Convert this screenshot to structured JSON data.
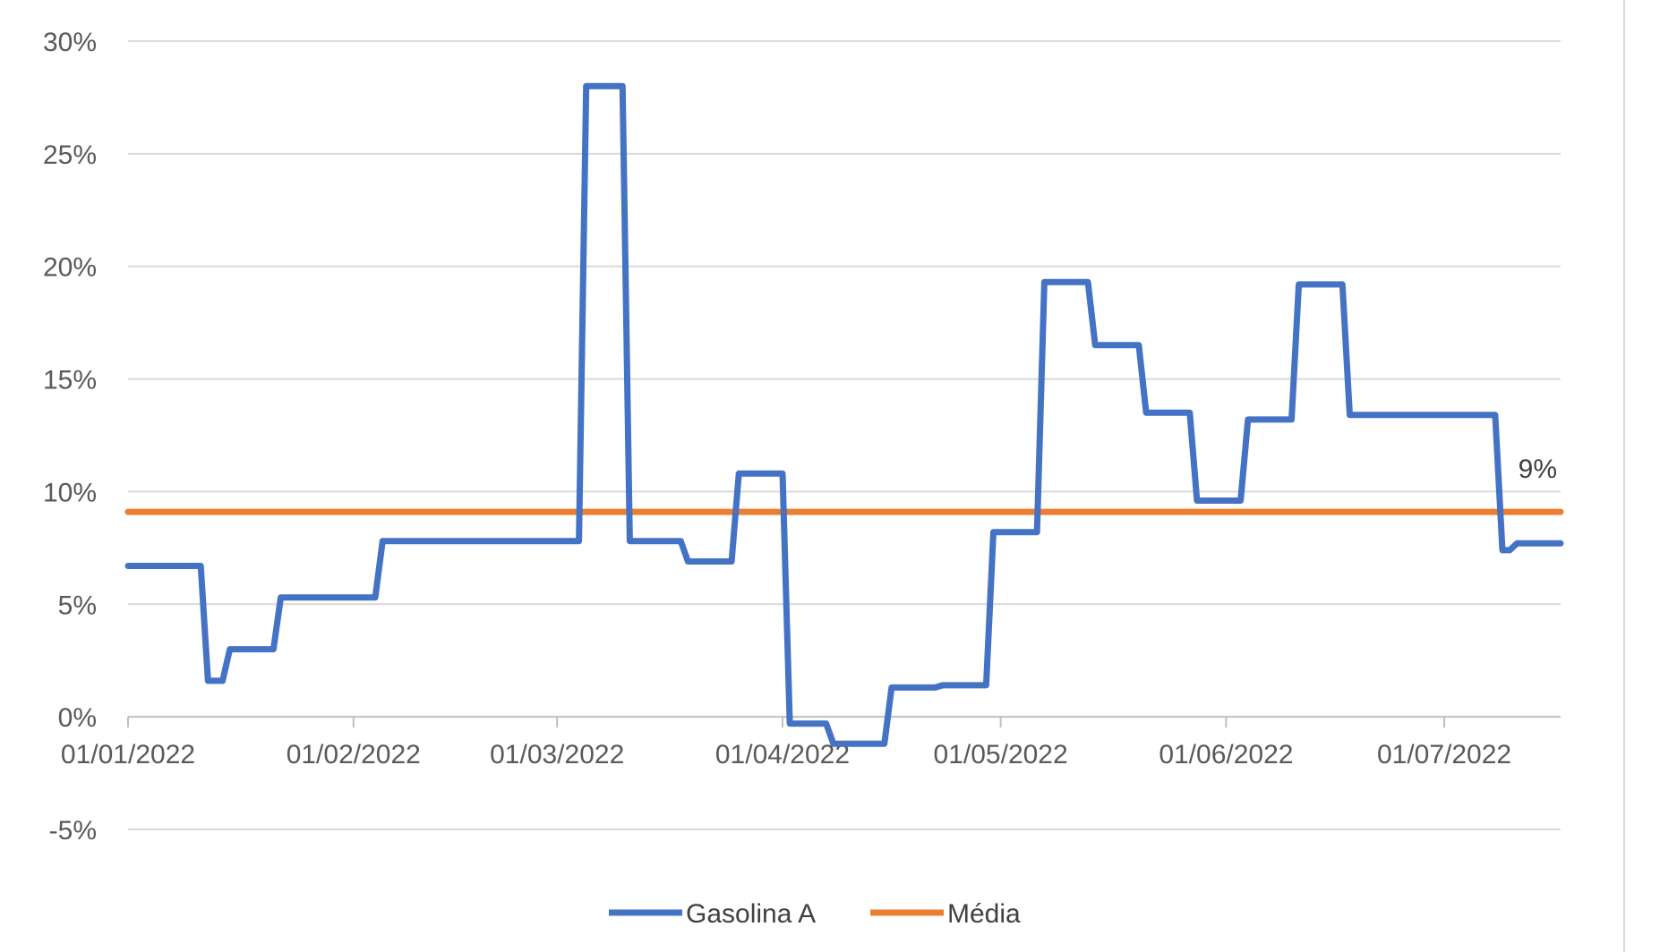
{
  "chart_data": {
    "type": "line",
    "title": "",
    "xlabel": "",
    "ylabel": "",
    "ylim": [
      -5,
      30
    ],
    "y_ticks": [
      "30%",
      "25%",
      "20%",
      "15%",
      "10%",
      "5%",
      "0%",
      "-5%"
    ],
    "y_tick_values": [
      30,
      25,
      20,
      15,
      10,
      5,
      0,
      -5
    ],
    "x_ticks": [
      "01/01/2022",
      "01/02/2022",
      "01/03/2022",
      "01/04/2022",
      "01/05/2022",
      "01/06/2022",
      "01/07/2022"
    ],
    "x_tick_dates": [
      "2022-01-01",
      "2022-02-01",
      "2022-03-01",
      "2022-04-01",
      "2022-05-01",
      "2022-06-01",
      "2022-07-01"
    ],
    "xlim": [
      "2022-01-01",
      "2022-07-17"
    ],
    "grid": true,
    "legend_position": "bottom",
    "series": [
      {
        "name": "Gasolina A",
        "color": "#4472C4",
        "points": [
          [
            "2022-01-01",
            6.7
          ],
          [
            "2022-01-11",
            6.7
          ],
          [
            "2022-01-12",
            1.6
          ],
          [
            "2022-01-14",
            1.6
          ],
          [
            "2022-01-15",
            3.0
          ],
          [
            "2022-01-21",
            3.0
          ],
          [
            "2022-01-22",
            5.3
          ],
          [
            "2022-02-04",
            5.3
          ],
          [
            "2022-02-05",
            7.8
          ],
          [
            "2022-03-04",
            7.8
          ],
          [
            "2022-03-05",
            28.0
          ],
          [
            "2022-03-10",
            28.0
          ],
          [
            "2022-03-11",
            7.8
          ],
          [
            "2022-03-18",
            7.8
          ],
          [
            "2022-03-19",
            6.9
          ],
          [
            "2022-03-25",
            6.9
          ],
          [
            "2022-03-26",
            10.8
          ],
          [
            "2022-04-01",
            10.8
          ],
          [
            "2022-04-02",
            -0.3
          ],
          [
            "2022-04-07",
            -0.3
          ],
          [
            "2022-04-08",
            -1.2
          ],
          [
            "2022-04-15",
            -1.2
          ],
          [
            "2022-04-16",
            1.3
          ],
          [
            "2022-04-22",
            1.3
          ],
          [
            "2022-04-23",
            1.4
          ],
          [
            "2022-04-29",
            1.4
          ],
          [
            "2022-04-30",
            8.2
          ],
          [
            "2022-05-06",
            8.2
          ],
          [
            "2022-05-07",
            19.3
          ],
          [
            "2022-05-13",
            19.3
          ],
          [
            "2022-05-14",
            16.5
          ],
          [
            "2022-05-20",
            16.5
          ],
          [
            "2022-05-21",
            13.5
          ],
          [
            "2022-05-27",
            13.5
          ],
          [
            "2022-05-28",
            9.6
          ],
          [
            "2022-06-03",
            9.6
          ],
          [
            "2022-06-04",
            13.2
          ],
          [
            "2022-06-10",
            13.2
          ],
          [
            "2022-06-11",
            19.2
          ],
          [
            "2022-06-17",
            19.2
          ],
          [
            "2022-06-18",
            13.4
          ],
          [
            "2022-07-08",
            13.4
          ],
          [
            "2022-07-09",
            7.4
          ],
          [
            "2022-07-10",
            7.4
          ],
          [
            "2022-07-11",
            7.7
          ],
          [
            "2022-07-17",
            7.7
          ]
        ]
      },
      {
        "name": "Média",
        "color": "#ED7D31",
        "points": [
          [
            "2022-01-01",
            9.1
          ],
          [
            "2022-07-17",
            9.1
          ]
        ]
      }
    ],
    "annotations": [
      {
        "text": "9%",
        "series": "Média",
        "date": "2022-07-17",
        "value": 9.1
      }
    ]
  }
}
